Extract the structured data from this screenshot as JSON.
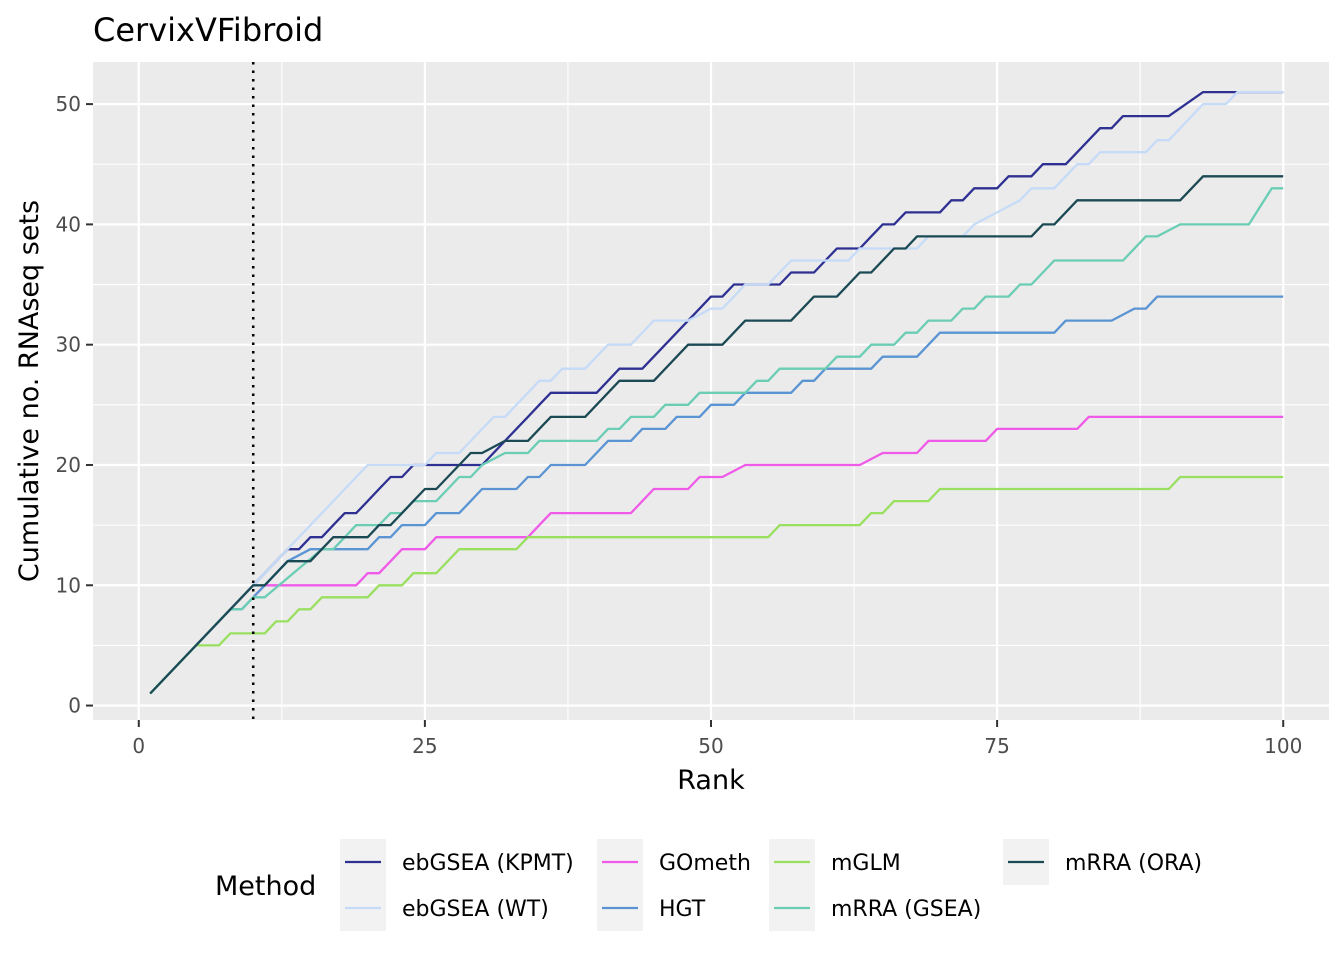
{
  "chart_data": {
    "type": "line",
    "title": "CervixVFibroid",
    "xlabel": "Rank",
    "ylabel": "Cumulative no. RNAseq sets",
    "xlim": [
      -4,
      104
    ],
    "ylim": [
      -1.2,
      53.5
    ],
    "x_ticks": [
      0,
      25,
      50,
      75,
      100
    ],
    "x_tick_labels": [
      "0",
      "25",
      "50",
      "75",
      "100"
    ],
    "y_ticks": [
      0,
      10,
      20,
      30,
      40,
      50
    ],
    "y_tick_labels": [
      "0",
      "10",
      "20",
      "30",
      "40",
      "50"
    ],
    "grid": true,
    "reference_line": {
      "x": 10,
      "style": "dotted"
    },
    "legend": {
      "title": "Method",
      "position": "bottom"
    },
    "series": [
      {
        "name": "ebGSEA (KPMT)",
        "color": "#2e3192",
        "points": [
          [
            1,
            1
          ],
          [
            10,
            10
          ],
          [
            11,
            11
          ],
          [
            12,
            12
          ],
          [
            13,
            13
          ],
          [
            14,
            13
          ],
          [
            15,
            14
          ],
          [
            16,
            14
          ],
          [
            17,
            15
          ],
          [
            18,
            16
          ],
          [
            19,
            16
          ],
          [
            20,
            17
          ],
          [
            21,
            18
          ],
          [
            22,
            19
          ],
          [
            23,
            19
          ],
          [
            24,
            20
          ],
          [
            30,
            20
          ],
          [
            33,
            23
          ],
          [
            34,
            24
          ],
          [
            35,
            25
          ],
          [
            36,
            26
          ],
          [
            40,
            26
          ],
          [
            41,
            27
          ],
          [
            42,
            28
          ],
          [
            44,
            28
          ],
          [
            49,
            33
          ],
          [
            50,
            34
          ],
          [
            51,
            34
          ],
          [
            52,
            35
          ],
          [
            56,
            35
          ],
          [
            57,
            36
          ],
          [
            59,
            36
          ],
          [
            60,
            37
          ],
          [
            61,
            38
          ],
          [
            63,
            38
          ],
          [
            64,
            39
          ],
          [
            65,
            40
          ],
          [
            66,
            40
          ],
          [
            67,
            41
          ],
          [
            70,
            41
          ],
          [
            71,
            42
          ],
          [
            72,
            42
          ],
          [
            73,
            43
          ],
          [
            75,
            43
          ],
          [
            76,
            44
          ],
          [
            78,
            44
          ],
          [
            79,
            45
          ],
          [
            81,
            45
          ],
          [
            84,
            48
          ],
          [
            85,
            48
          ],
          [
            86,
            49
          ],
          [
            90,
            49
          ],
          [
            93,
            51
          ],
          [
            100,
            51
          ]
        ]
      },
      {
        "name": "ebGSEA (WT)",
        "color": "#c6dbf7",
        "points": [
          [
            1,
            1
          ],
          [
            10,
            10
          ],
          [
            11,
            11
          ],
          [
            20,
            20
          ],
          [
            25,
            20
          ],
          [
            26,
            21
          ],
          [
            28,
            21
          ],
          [
            31,
            24
          ],
          [
            32,
            24
          ],
          [
            33,
            25
          ],
          [
            35,
            27
          ],
          [
            36,
            27
          ],
          [
            37,
            28
          ],
          [
            39,
            28
          ],
          [
            41,
            30
          ],
          [
            43,
            30
          ],
          [
            45,
            32
          ],
          [
            48,
            32
          ],
          [
            50,
            33
          ],
          [
            51,
            33
          ],
          [
            52,
            34
          ],
          [
            53,
            35
          ],
          [
            55,
            35
          ],
          [
            57,
            37
          ],
          [
            61,
            37
          ],
          [
            62,
            37
          ],
          [
            63,
            38
          ],
          [
            68,
            38
          ],
          [
            69,
            39
          ],
          [
            72,
            39
          ],
          [
            73,
            40
          ],
          [
            75,
            41
          ],
          [
            77,
            42
          ],
          [
            78,
            43
          ],
          [
            80,
            43
          ],
          [
            82,
            45
          ],
          [
            83,
            45
          ],
          [
            84,
            46
          ],
          [
            88,
            46
          ],
          [
            89,
            47
          ],
          [
            90,
            47
          ],
          [
            93,
            50
          ],
          [
            95,
            50
          ],
          [
            96,
            51
          ],
          [
            100,
            51
          ]
        ]
      },
      {
        "name": "GOmeth",
        "color": "#f05ae8",
        "points": [
          [
            10,
            9
          ],
          [
            11,
            10
          ],
          [
            19,
            10
          ],
          [
            20,
            11
          ],
          [
            21,
            11
          ],
          [
            22,
            12
          ],
          [
            23,
            13
          ],
          [
            25,
            13
          ],
          [
            26,
            14
          ],
          [
            34,
            14
          ],
          [
            35,
            15
          ],
          [
            36,
            16
          ],
          [
            43,
            16
          ],
          [
            45,
            18
          ],
          [
            48,
            18
          ],
          [
            49,
            19
          ],
          [
            51,
            19
          ],
          [
            53,
            20
          ],
          [
            63,
            20
          ],
          [
            65,
            21
          ],
          [
            68,
            21
          ],
          [
            69,
            22
          ],
          [
            74,
            22
          ],
          [
            75,
            23
          ],
          [
            82,
            23
          ],
          [
            83,
            24
          ],
          [
            100,
            24
          ]
        ]
      },
      {
        "name": "HGT",
        "color": "#5b94d3",
        "points": [
          [
            8,
            8
          ],
          [
            9,
            8
          ],
          [
            11,
            10
          ],
          [
            13,
            12
          ],
          [
            15,
            13
          ],
          [
            20,
            13
          ],
          [
            21,
            14
          ],
          [
            22,
            14
          ],
          [
            23,
            15
          ],
          [
            25,
            15
          ],
          [
            26,
            16
          ],
          [
            28,
            16
          ],
          [
            29,
            17
          ],
          [
            30,
            18
          ],
          [
            33,
            18
          ],
          [
            34,
            19
          ],
          [
            35,
            19
          ],
          [
            36,
            20
          ],
          [
            39,
            20
          ],
          [
            41,
            22
          ],
          [
            43,
            22
          ],
          [
            44,
            23
          ],
          [
            46,
            23
          ],
          [
            47,
            24
          ],
          [
            49,
            24
          ],
          [
            50,
            25
          ],
          [
            52,
            25
          ],
          [
            53,
            26
          ],
          [
            57,
            26
          ],
          [
            58,
            27
          ],
          [
            59,
            27
          ],
          [
            60,
            28
          ],
          [
            64,
            28
          ],
          [
            65,
            29
          ],
          [
            68,
            29
          ],
          [
            70,
            31
          ],
          [
            80,
            31
          ],
          [
            81,
            32
          ],
          [
            85,
            32
          ],
          [
            87,
            33
          ],
          [
            88,
            33
          ],
          [
            89,
            34
          ],
          [
            100,
            34
          ]
        ]
      },
      {
        "name": "mGLM",
        "color": "#99e060",
        "points": [
          [
            1,
            1
          ],
          [
            5,
            5
          ],
          [
            7,
            5
          ],
          [
            8,
            6
          ],
          [
            10,
            6
          ],
          [
            11,
            6
          ],
          [
            12,
            7
          ],
          [
            13,
            7
          ],
          [
            14,
            8
          ],
          [
            15,
            8
          ],
          [
            16,
            9
          ],
          [
            20,
            9
          ],
          [
            21,
            10
          ],
          [
            23,
            10
          ],
          [
            24,
            11
          ],
          [
            26,
            11
          ],
          [
            28,
            13
          ],
          [
            33,
            13
          ],
          [
            34,
            14
          ],
          [
            55,
            14
          ],
          [
            56,
            15
          ],
          [
            63,
            15
          ],
          [
            64,
            16
          ],
          [
            65,
            16
          ],
          [
            66,
            17
          ],
          [
            69,
            17
          ],
          [
            70,
            18
          ],
          [
            90,
            18
          ],
          [
            91,
            19
          ],
          [
            100,
            19
          ]
        ]
      },
      {
        "name": "mRRA (GSEA)",
        "color": "#6acdb4",
        "points": [
          [
            1,
            1
          ],
          [
            8,
            8
          ],
          [
            9,
            8
          ],
          [
            10,
            9
          ],
          [
            11,
            9
          ],
          [
            16,
            13
          ],
          [
            17,
            13
          ],
          [
            18,
            14
          ],
          [
            19,
            15
          ],
          [
            21,
            15
          ],
          [
            22,
            16
          ],
          [
            23,
            16
          ],
          [
            24,
            17
          ],
          [
            26,
            17
          ],
          [
            27,
            18
          ],
          [
            28,
            19
          ],
          [
            29,
            19
          ],
          [
            30,
            20
          ],
          [
            32,
            21
          ],
          [
            34,
            21
          ],
          [
            35,
            22
          ],
          [
            40,
            22
          ],
          [
            41,
            23
          ],
          [
            42,
            23
          ],
          [
            43,
            24
          ],
          [
            45,
            24
          ],
          [
            46,
            25
          ],
          [
            48,
            25
          ],
          [
            49,
            26
          ],
          [
            53,
            26
          ],
          [
            54,
            27
          ],
          [
            55,
            27
          ],
          [
            56,
            28
          ],
          [
            60,
            28
          ],
          [
            61,
            29
          ],
          [
            63,
            29
          ],
          [
            64,
            30
          ],
          [
            66,
            30
          ],
          [
            67,
            31
          ],
          [
            68,
            31
          ],
          [
            69,
            32
          ],
          [
            71,
            32
          ],
          [
            72,
            33
          ],
          [
            73,
            33
          ],
          [
            74,
            34
          ],
          [
            76,
            34
          ],
          [
            77,
            35
          ],
          [
            78,
            35
          ],
          [
            80,
            37
          ],
          [
            86,
            37
          ],
          [
            88,
            39
          ],
          [
            89,
            39
          ],
          [
            91,
            40
          ],
          [
            97,
            40
          ],
          [
            99,
            43
          ],
          [
            100,
            43
          ]
        ]
      },
      {
        "name": "mRRA (ORA)",
        "color": "#1b4a55",
        "points": [
          [
            1,
            1
          ],
          [
            10,
            10
          ],
          [
            11,
            10
          ],
          [
            13,
            12
          ],
          [
            15,
            12
          ],
          [
            17,
            14
          ],
          [
            20,
            14
          ],
          [
            21,
            15
          ],
          [
            22,
            15
          ],
          [
            24,
            17
          ],
          [
            25,
            18
          ],
          [
            26,
            18
          ],
          [
            29,
            21
          ],
          [
            30,
            21
          ],
          [
            32,
            22
          ],
          [
            34,
            22
          ],
          [
            35,
            23
          ],
          [
            36,
            24
          ],
          [
            39,
            24
          ],
          [
            42,
            27
          ],
          [
            45,
            27
          ],
          [
            48,
            30
          ],
          [
            51,
            30
          ],
          [
            53,
            32
          ],
          [
            57,
            32
          ],
          [
            59,
            34
          ],
          [
            61,
            34
          ],
          [
            63,
            36
          ],
          [
            64,
            36
          ],
          [
            66,
            38
          ],
          [
            67,
            38
          ],
          [
            68,
            39
          ],
          [
            78,
            39
          ],
          [
            79,
            40
          ],
          [
            80,
            40
          ],
          [
            82,
            42
          ],
          [
            91,
            42
          ],
          [
            93,
            44
          ],
          [
            100,
            44
          ]
        ]
      }
    ]
  }
}
